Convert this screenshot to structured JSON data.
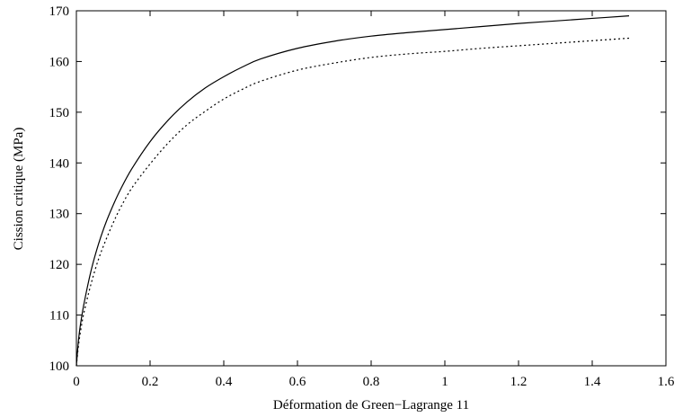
{
  "chart_data": {
    "type": "line",
    "xlabel": "Déformation de Green−Lagrange 11",
    "ylabel": "Cission critique (MPa)",
    "xlim": [
      0,
      1.6
    ],
    "ylim": [
      100,
      170
    ],
    "x_ticks": [
      "0",
      "0.2",
      "0.4",
      "0.6",
      "0.8",
      "1",
      "1.2",
      "1.4",
      "1.6"
    ],
    "y_ticks": [
      "100",
      "110",
      "120",
      "130",
      "140",
      "150",
      "160",
      "170"
    ],
    "grid": false,
    "legend": "none",
    "series": [
      {
        "style": "solid",
        "color": "#000000",
        "points": [
          [
            0,
            100
          ],
          [
            0.005,
            104.5
          ],
          [
            0.01,
            107.6
          ],
          [
            0.02,
            112.0
          ],
          [
            0.04,
            118.8
          ],
          [
            0.06,
            124.0
          ],
          [
            0.08,
            128.2
          ],
          [
            0.1,
            131.7
          ],
          [
            0.12,
            134.8
          ],
          [
            0.15,
            138.8
          ],
          [
            0.2,
            144.2
          ],
          [
            0.25,
            148.5
          ],
          [
            0.3,
            152.0
          ],
          [
            0.35,
            154.8
          ],
          [
            0.4,
            157.0
          ],
          [
            0.45,
            158.9
          ],
          [
            0.5,
            160.5
          ],
          [
            0.6,
            162.6
          ],
          [
            0.7,
            164.0
          ],
          [
            0.8,
            165.0
          ],
          [
            0.9,
            165.7
          ],
          [
            1.0,
            166.3
          ],
          [
            1.1,
            166.9
          ],
          [
            1.2,
            167.5
          ],
          [
            1.3,
            168.0
          ],
          [
            1.4,
            168.5
          ],
          [
            1.5,
            169.0
          ]
        ]
      },
      {
        "style": "dotted",
        "color": "#000000",
        "points": [
          [
            0,
            100
          ],
          [
            0.005,
            103.6
          ],
          [
            0.01,
            106.2
          ],
          [
            0.02,
            110.3
          ],
          [
            0.04,
            116.2
          ],
          [
            0.06,
            121.0
          ],
          [
            0.08,
            124.8
          ],
          [
            0.1,
            128.2
          ],
          [
            0.12,
            131.2
          ],
          [
            0.15,
            135.0
          ],
          [
            0.2,
            139.8
          ],
          [
            0.25,
            144.0
          ],
          [
            0.3,
            147.5
          ],
          [
            0.35,
            150.2
          ],
          [
            0.4,
            152.6
          ],
          [
            0.45,
            154.5
          ],
          [
            0.5,
            156.1
          ],
          [
            0.6,
            158.3
          ],
          [
            0.7,
            159.7
          ],
          [
            0.8,
            160.8
          ],
          [
            0.9,
            161.5
          ],
          [
            1.0,
            162.0
          ],
          [
            1.1,
            162.6
          ],
          [
            1.2,
            163.1
          ],
          [
            1.3,
            163.6
          ],
          [
            1.4,
            164.1
          ],
          [
            1.5,
            164.6
          ]
        ]
      }
    ]
  }
}
